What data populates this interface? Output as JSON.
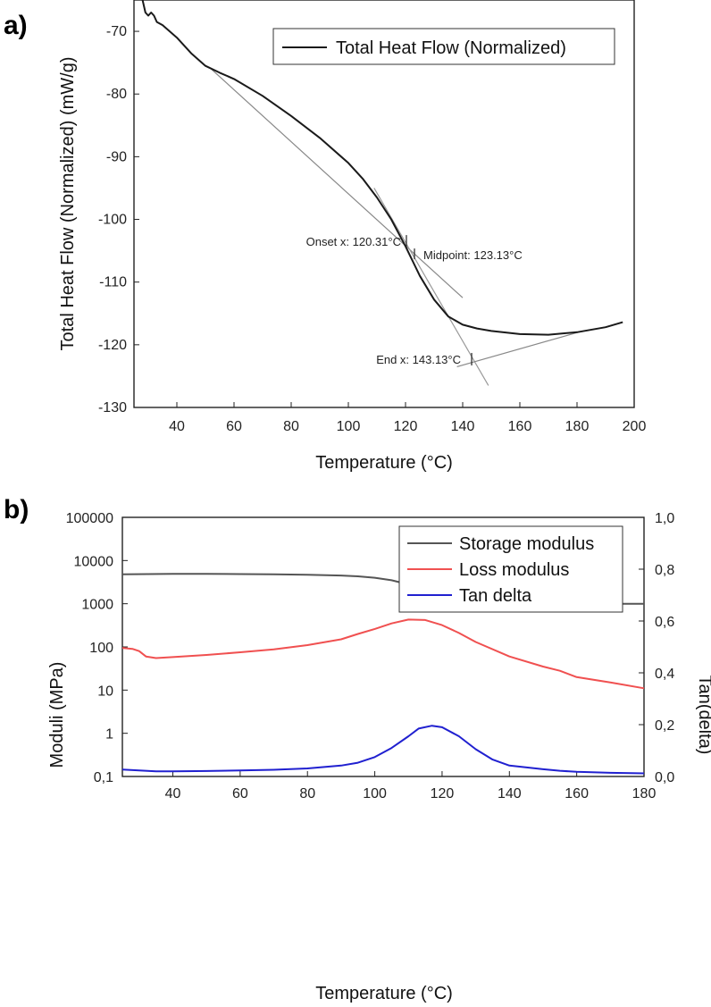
{
  "chart_data": [
    {
      "panel_label": "a)",
      "type": "line",
      "xlabel": "Temperature (°C)",
      "ylabel": "Total Heat Flow (Normalized) (mW/g)",
      "xlim": [
        25,
        200
      ],
      "ylim": [
        -130,
        -65
      ],
      "xticks": [
        "40",
        "60",
        "80",
        "100",
        "120",
        "140",
        "160",
        "180",
        "200"
      ],
      "yticks": [
        "-70",
        "-80",
        "-90",
        "-100",
        "-110",
        "-120",
        "-130"
      ],
      "grid": false,
      "legend": {
        "position": "top-right",
        "entries": [
          "Total Heat Flow (Normalized)"
        ]
      },
      "series": [
        {
          "name": "Total Heat Flow (Normalized)",
          "color": "#1a1a1a",
          "x": [
            28,
            29,
            30,
            31,
            32,
            33,
            35,
            40,
            45,
            50,
            55,
            60,
            70,
            80,
            90,
            100,
            105,
            110,
            115,
            120,
            125,
            130,
            135,
            140,
            145,
            150,
            160,
            170,
            180,
            190,
            196
          ],
          "y": [
            -65,
            -67,
            -67.5,
            -67,
            -67.5,
            -68.5,
            -69,
            -71,
            -73.5,
            -75.5,
            -76.6,
            -77.6,
            -80.3,
            -83.5,
            -87,
            -91,
            -93.5,
            -96.5,
            -100,
            -104.3,
            -109,
            -112.8,
            -115.5,
            -116.8,
            -117.4,
            -117.8,
            -118.3,
            -118.4,
            -118,
            -117.2,
            -116.4
          ]
        }
      ],
      "tangent_lines": [
        {
          "x": [
            52,
            140
          ],
          "y": [
            -76,
            -112.5
          ],
          "color": "#888888"
        },
        {
          "x": [
            109,
            149
          ],
          "y": [
            -95,
            -126.5
          ],
          "color": "#999999"
        },
        {
          "x": [
            138,
            182
          ],
          "y": [
            -123.5,
            -117.8
          ],
          "color": "#888888"
        }
      ],
      "annotations": [
        {
          "text": "Onset x: 120.31°C",
          "x": 120.31,
          "y": -103.5
        },
        {
          "text": "Midpoint: 123.13°C",
          "x": 123.13,
          "y": -105.5
        },
        {
          "text": "End x: 143.13°C",
          "x": 143.13,
          "y": -122.3
        }
      ]
    },
    {
      "panel_label": "b)",
      "type": "line",
      "xlabel": "Temperature (°C)",
      "ylabel": "Moduli (MPa)",
      "y2label": "Tan(delta)",
      "xlim": [
        25,
        180
      ],
      "ylim": [
        0.1,
        100000
      ],
      "yscale": "log",
      "y2lim": [
        0,
        1
      ],
      "xticks": [
        "40",
        "60",
        "80",
        "100",
        "120",
        "140",
        "160",
        "180"
      ],
      "yticks": [
        "0,1",
        "1",
        "10",
        "100",
        "1000",
        "10000",
        "100000"
      ],
      "y2ticks": [
        "0,0",
        "0,2",
        "0,4",
        "0,6",
        "0,8",
        "1,0"
      ],
      "grid": false,
      "legend": {
        "position": "top-right",
        "entries": [
          "Storage modulus",
          "Loss modulus",
          "Tan delta"
        ]
      },
      "series": [
        {
          "name": "Storage modulus",
          "axis": "left",
          "color": "#555555",
          "x": [
            25,
            40,
            50,
            60,
            70,
            80,
            90,
            95,
            100,
            105,
            110,
            115,
            120,
            125,
            130,
            140,
            150,
            160,
            170,
            180
          ],
          "y": [
            4800,
            4900,
            4900,
            4850,
            4800,
            4700,
            4500,
            4300,
            4000,
            3500,
            2800,
            2100,
            1600,
            1300,
            1150,
            1030,
            1000,
            1000,
            1000,
            1000
          ]
        },
        {
          "name": "Loss modulus",
          "axis": "left",
          "color": "#f05050",
          "x": [
            25,
            28,
            30,
            32,
            35,
            40,
            50,
            60,
            70,
            80,
            90,
            95,
            100,
            105,
            110,
            115,
            120,
            125,
            130,
            140,
            150,
            155,
            160,
            170,
            180
          ],
          "y": [
            95,
            90,
            80,
            60,
            55,
            58,
            65,
            75,
            88,
            110,
            150,
            200,
            260,
            350,
            430,
            420,
            320,
            210,
            130,
            60,
            35,
            28,
            20,
            15,
            11
          ]
        },
        {
          "name": "Tan delta",
          "axis": "right",
          "color": "#2020d0",
          "x": [
            25,
            30,
            35,
            40,
            50,
            60,
            70,
            80,
            90,
            95,
            100,
            105,
            110,
            113,
            117,
            120,
            125,
            130,
            135,
            140,
            150,
            155,
            160,
            170,
            180
          ],
          "y": [
            0.027,
            0.023,
            0.02,
            0.02,
            0.021,
            0.023,
            0.026,
            0.031,
            0.042,
            0.053,
            0.075,
            0.11,
            0.155,
            0.185,
            0.196,
            0.19,
            0.155,
            0.105,
            0.065,
            0.042,
            0.028,
            0.022,
            0.018,
            0.014,
            0.012
          ]
        }
      ]
    }
  ]
}
